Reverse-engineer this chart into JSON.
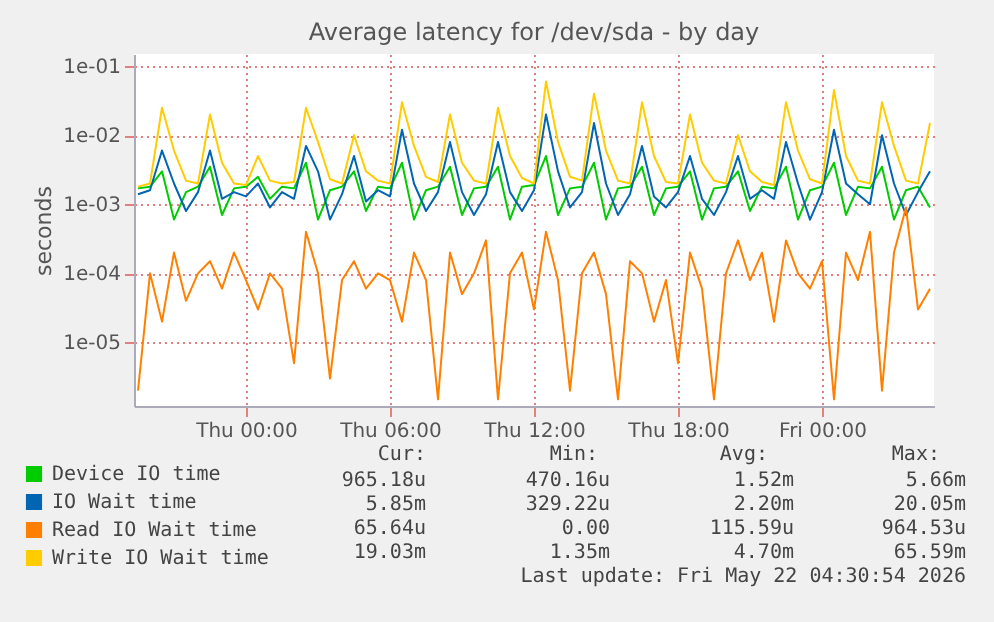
{
  "chart_data": {
    "type": "line",
    "title": "Average latency for /dev/sda - by day",
    "ylabel": "seconds",
    "x": [
      "2026-05-20T19:30",
      "2026-05-20T20:00",
      "2026-05-20T20:30",
      "2026-05-20T21:00",
      "2026-05-20T21:30",
      "2026-05-20T22:00",
      "2026-05-20T22:30",
      "2026-05-20T23:00",
      "2026-05-20T23:30",
      "2026-05-21T00:00",
      "2026-05-21T00:30",
      "2026-05-21T01:00",
      "2026-05-21T01:30",
      "2026-05-21T02:00",
      "2026-05-21T02:30",
      "2026-05-21T03:00",
      "2026-05-21T03:30",
      "2026-05-21T04:00",
      "2026-05-21T04:30",
      "2026-05-21T05:00",
      "2026-05-21T05:30",
      "2026-05-21T06:00",
      "2026-05-21T06:30",
      "2026-05-21T07:00",
      "2026-05-21T07:30",
      "2026-05-21T08:00",
      "2026-05-21T08:30",
      "2026-05-21T09:00",
      "2026-05-21T09:30",
      "2026-05-21T10:00",
      "2026-05-21T10:30",
      "2026-05-21T11:00",
      "2026-05-21T11:30",
      "2026-05-21T12:00",
      "2026-05-21T12:30",
      "2026-05-21T13:00",
      "2026-05-21T13:30",
      "2026-05-21T14:00",
      "2026-05-21T14:30",
      "2026-05-21T15:00",
      "2026-05-21T15:30",
      "2026-05-21T16:00",
      "2026-05-21T16:30",
      "2026-05-21T17:00",
      "2026-05-21T17:30",
      "2026-05-21T18:00",
      "2026-05-21T18:30",
      "2026-05-21T19:00",
      "2026-05-21T19:30",
      "2026-05-21T20:00",
      "2026-05-21T20:30",
      "2026-05-21T21:00",
      "2026-05-21T21:30",
      "2026-05-21T22:00",
      "2026-05-21T22:30",
      "2026-05-21T23:00",
      "2026-05-21T23:30",
      "2026-05-22T00:00",
      "2026-05-22T00:30",
      "2026-05-22T01:00",
      "2026-05-22T01:30",
      "2026-05-22T02:00",
      "2026-05-22T02:30",
      "2026-05-22T03:00",
      "2026-05-22T03:30",
      "2026-05-22T04:00",
      "2026-05-22T04:30"
    ],
    "series": [
      {
        "name": "Device IO time",
        "color": "#00cc00",
        "values": [
          0.0017,
          0.0018,
          0.003,
          0.0006,
          0.0015,
          0.0018,
          0.0035,
          0.0007,
          0.0017,
          0.0018,
          0.0025,
          0.0012,
          0.0018,
          0.0017,
          0.004,
          0.0006,
          0.0016,
          0.0018,
          0.003,
          0.0008,
          0.0018,
          0.0017,
          0.004,
          0.0006,
          0.0016,
          0.0018,
          0.0035,
          0.0007,
          0.0017,
          0.0018,
          0.0035,
          0.0006,
          0.0018,
          0.0019,
          0.005,
          0.0007,
          0.0017,
          0.0018,
          0.004,
          0.0006,
          0.0017,
          0.0018,
          0.0035,
          0.0007,
          0.0017,
          0.0018,
          0.003,
          0.0006,
          0.0017,
          0.0018,
          0.003,
          0.0008,
          0.0018,
          0.0017,
          0.0035,
          0.0006,
          0.0016,
          0.0018,
          0.004,
          0.0007,
          0.0018,
          0.0017,
          0.0035,
          0.0006,
          0.0016,
          0.0018,
          0.0009
        ]
      },
      {
        "name": "IO Wait time",
        "color": "#0066b3",
        "values": [
          0.0014,
          0.0016,
          0.006,
          0.002,
          0.0008,
          0.0015,
          0.006,
          0.0012,
          0.0015,
          0.0013,
          0.002,
          0.0009,
          0.0015,
          0.0012,
          0.007,
          0.003,
          0.0006,
          0.0014,
          0.005,
          0.0011,
          0.0016,
          0.0013,
          0.012,
          0.002,
          0.0008,
          0.0015,
          0.008,
          0.0015,
          0.0007,
          0.0014,
          0.008,
          0.0015,
          0.0008,
          0.0016,
          0.02,
          0.003,
          0.0009,
          0.0015,
          0.015,
          0.002,
          0.0007,
          0.0014,
          0.007,
          0.0013,
          0.0009,
          0.0015,
          0.005,
          0.0012,
          0.0007,
          0.0015,
          0.005,
          0.0012,
          0.0016,
          0.0012,
          0.008,
          0.002,
          0.0006,
          0.0015,
          0.012,
          0.002,
          0.0014,
          0.001,
          0.01,
          0.002,
          0.0007,
          0.0015,
          0.003
        ]
      },
      {
        "name": "Read IO Wait time",
        "color": "#ff8000",
        "values": [
          2e-06,
          0.0001,
          2e-05,
          0.0002,
          4e-05,
          0.0001,
          0.00015,
          6e-05,
          0.0002,
          8e-05,
          3e-05,
          0.0001,
          6e-05,
          5e-06,
          0.0004,
          0.0001,
          3e-06,
          8e-05,
          0.00015,
          6e-05,
          0.0001,
          8e-05,
          2e-05,
          0.0002,
          8e-05,
          1.5e-06,
          0.0002,
          5e-05,
          0.0001,
          0.0003,
          1.5e-06,
          0.0001,
          0.0002,
          3e-05,
          0.0004,
          8e-05,
          2e-06,
          0.0001,
          0.0002,
          5e-05,
          1.5e-06,
          0.00015,
          0.0001,
          2e-05,
          8e-05,
          5e-06,
          0.0002,
          6e-05,
          1.5e-06,
          0.0001,
          0.0003,
          8e-05,
          0.0002,
          2e-05,
          0.0003,
          0.0001,
          6e-05,
          0.00015,
          1.5e-06,
          0.0002,
          8e-05,
          0.0004,
          2e-06,
          0.0002,
          0.0009,
          3e-05,
          6e-05
        ]
      },
      {
        "name": "Write IO Wait time",
        "color": "#ffcc00",
        "values": [
          0.0018,
          0.002,
          0.025,
          0.006,
          0.0022,
          0.002,
          0.02,
          0.004,
          0.002,
          0.0019,
          0.005,
          0.0022,
          0.002,
          0.0021,
          0.025,
          0.008,
          0.0023,
          0.002,
          0.01,
          0.003,
          0.0022,
          0.002,
          0.03,
          0.007,
          0.0025,
          0.0021,
          0.02,
          0.004,
          0.0022,
          0.002,
          0.025,
          0.005,
          0.0024,
          0.002,
          0.06,
          0.008,
          0.0025,
          0.0022,
          0.04,
          0.006,
          0.0022,
          0.002,
          0.03,
          0.005,
          0.0021,
          0.002,
          0.02,
          0.004,
          0.0022,
          0.002,
          0.01,
          0.003,
          0.0021,
          0.0019,
          0.03,
          0.006,
          0.0023,
          0.002,
          0.045,
          0.005,
          0.0022,
          0.002,
          0.03,
          0.007,
          0.0022,
          0.002,
          0.015
        ]
      }
    ],
    "log": "y",
    "xlim": [
      "2026-05-20T19:20",
      "2026-05-22T04:40"
    ],
    "xticks": [
      {
        "value": "2026-05-21T00:00",
        "label": "Thu 00:00"
      },
      {
        "value": "2026-05-21T06:00",
        "label": "Thu 06:00"
      },
      {
        "value": "2026-05-21T12:00",
        "label": "Thu 12:00"
      },
      {
        "value": "2026-05-21T18:00",
        "label": "Thu 18:00"
      },
      {
        "value": "2026-05-22T00:00",
        "label": "Fri 00:00"
      }
    ],
    "ylim": [
      1.2e-06,
      0.15
    ],
    "yticks": [
      {
        "value": 1e-05,
        "label": "1e-05"
      },
      {
        "value": 0.0001,
        "label": "1e-04"
      },
      {
        "value": 0.001,
        "label": "1e-03"
      },
      {
        "value": 0.01,
        "label": "1e-02"
      },
      {
        "value": 0.1,
        "label": "1e-01"
      }
    ],
    "grid": true,
    "legend": "bottom",
    "annotations": [
      "Cur:",
      "Min:",
      "Avg:",
      "Max:",
      "965.18u",
      "470.16u",
      "1.52m",
      "5.66m",
      "5.85m",
      "329.22u",
      "2.20m",
      "20.05m",
      "65.64u",
      "0.00",
      "115.59u",
      "964.53u",
      "19.03m",
      "1.35m",
      "4.70m",
      "65.59m",
      "Last update: Fri May 22 04:30:54 2026"
    ]
  }
}
